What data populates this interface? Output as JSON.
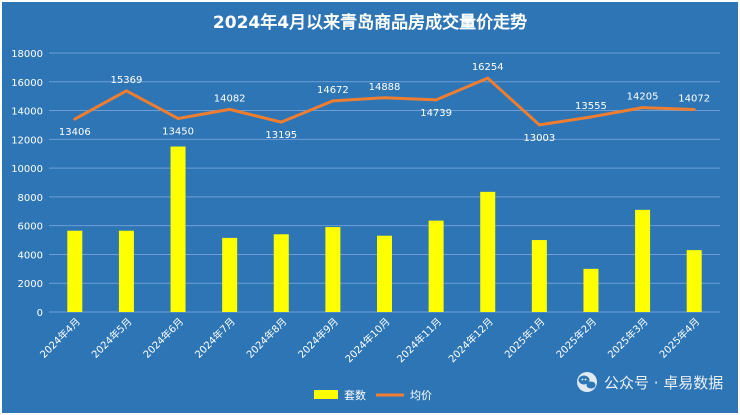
{
  "chart_data": {
    "type": "bar",
    "title": "2024年4月以来青岛商品房成交量价走势",
    "categories": [
      "2024年4月",
      "2024年5月",
      "2024年6月",
      "2024年7月",
      "2024年8月",
      "2024年9月",
      "2024年10月",
      "2024年11月",
      "2024年12月",
      "2025年1月",
      "2025年2月",
      "2025年3月",
      "2025年4月"
    ],
    "series": [
      {
        "name": "套数",
        "type": "bar",
        "color": "#ffff00",
        "values": [
          5650,
          5650,
          11500,
          5150,
          5400,
          5900,
          5300,
          6350,
          8350,
          5000,
          3000,
          7100,
          4300
        ]
      },
      {
        "name": "均价",
        "type": "line",
        "color": "#ed7d31",
        "values": [
          13406,
          15369,
          13450,
          14082,
          13195,
          14672,
          14888,
          14739,
          16254,
          13003,
          13555,
          14205,
          14072
        ]
      }
    ],
    "ylim": [
      0,
      18000
    ],
    "yticks": [
      0,
      2000,
      4000,
      6000,
      8000,
      10000,
      12000,
      14000,
      16000,
      18000
    ],
    "grid": true,
    "legend": "bottom",
    "colors": {
      "background": "#2e75b6",
      "grid": "#6f9ed4",
      "text": "#ffffff"
    }
  },
  "watermark": {
    "text": "公众号 · 卓易数据",
    "icon": "wechat-icon"
  }
}
